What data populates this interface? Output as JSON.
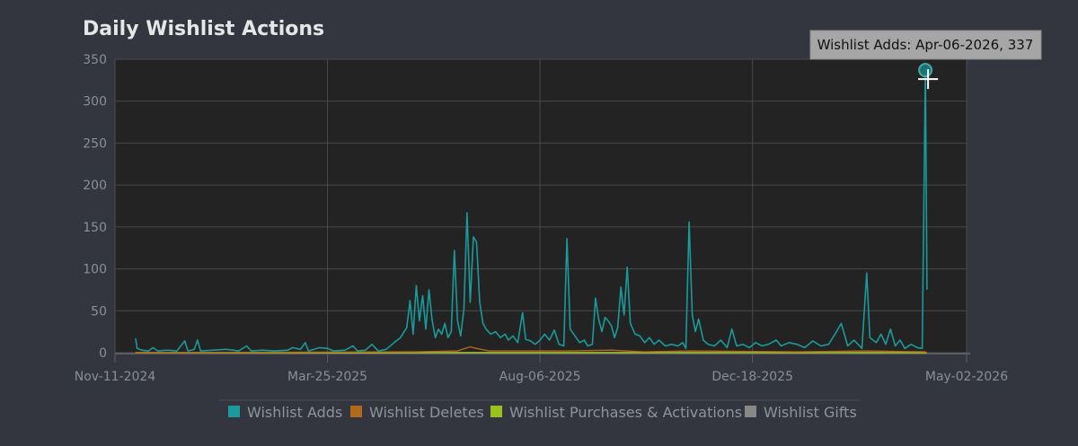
{
  "chart_data": {
    "type": "line",
    "title": "Daily Wishlist Actions",
    "xlabel": "",
    "ylabel": "",
    "ylim": [
      0,
      350
    ],
    "y_ticks": [
      0,
      50,
      100,
      150,
      200,
      250,
      300,
      350
    ],
    "xlim": [
      "2024-11-11",
      "2026-05-02"
    ],
    "x_tick_labels": [
      "Nov-11-2024",
      "Mar-25-2025",
      "Aug-06-2025",
      "Dec-18-2025",
      "May-02-2026"
    ],
    "x_tick_dates": [
      "2024-11-11",
      "2025-03-25",
      "2025-08-06",
      "2025-12-18",
      "2026-05-02"
    ],
    "grid": true,
    "legend_position": "bottom",
    "series": [
      {
        "name": "Wishlist Adds",
        "color": "#1a9a9a",
        "points": [
          [
            "2024-11-24",
            17
          ],
          [
            "2024-11-25",
            5
          ],
          [
            "2024-11-28",
            3
          ],
          [
            "2024-12-02",
            2
          ],
          [
            "2024-12-05",
            6
          ],
          [
            "2024-12-08",
            2
          ],
          [
            "2024-12-14",
            3
          ],
          [
            "2024-12-20",
            2
          ],
          [
            "2024-12-25",
            14
          ],
          [
            "2024-12-27",
            2
          ],
          [
            "2024-12-31",
            4
          ],
          [
            "2025-01-02",
            15
          ],
          [
            "2025-01-04",
            2
          ],
          [
            "2025-01-12",
            3
          ],
          [
            "2025-01-20",
            4
          ],
          [
            "2025-01-28",
            2
          ],
          [
            "2025-02-02",
            8
          ],
          [
            "2025-02-05",
            2
          ],
          [
            "2025-02-12",
            3
          ],
          [
            "2025-02-20",
            2
          ],
          [
            "2025-02-28",
            3
          ],
          [
            "2025-03-03",
            6
          ],
          [
            "2025-03-08",
            4
          ],
          [
            "2025-03-11",
            12
          ],
          [
            "2025-03-13",
            2
          ],
          [
            "2025-03-20",
            6
          ],
          [
            "2025-03-25",
            5
          ],
          [
            "2025-03-29",
            2
          ],
          [
            "2025-04-05",
            3
          ],
          [
            "2025-04-10",
            8
          ],
          [
            "2025-04-13",
            2
          ],
          [
            "2025-04-18",
            3
          ],
          [
            "2025-04-22",
            10
          ],
          [
            "2025-04-26",
            2
          ],
          [
            "2025-05-01",
            4
          ],
          [
            "2025-05-06",
            12
          ],
          [
            "2025-05-10",
            18
          ],
          [
            "2025-05-14",
            30
          ],
          [
            "2025-05-16",
            62
          ],
          [
            "2025-05-18",
            22
          ],
          [
            "2025-05-20",
            80
          ],
          [
            "2025-05-22",
            38
          ],
          [
            "2025-05-24",
            68
          ],
          [
            "2025-05-26",
            28
          ],
          [
            "2025-05-28",
            75
          ],
          [
            "2025-05-30",
            38
          ],
          [
            "2025-06-01",
            18
          ],
          [
            "2025-06-03",
            28
          ],
          [
            "2025-06-05",
            22
          ],
          [
            "2025-06-07",
            35
          ],
          [
            "2025-06-09",
            18
          ],
          [
            "2025-06-11",
            25
          ],
          [
            "2025-06-13",
            122
          ],
          [
            "2025-06-15",
            38
          ],
          [
            "2025-06-17",
            20
          ],
          [
            "2025-06-19",
            52
          ],
          [
            "2025-06-21",
            167
          ],
          [
            "2025-06-23",
            60
          ],
          [
            "2025-06-25",
            138
          ],
          [
            "2025-06-27",
            132
          ],
          [
            "2025-06-29",
            60
          ],
          [
            "2025-07-01",
            35
          ],
          [
            "2025-07-03",
            28
          ],
          [
            "2025-07-06",
            22
          ],
          [
            "2025-07-09",
            25
          ],
          [
            "2025-07-12",
            18
          ],
          [
            "2025-07-15",
            22
          ],
          [
            "2025-07-17",
            15
          ],
          [
            "2025-07-20",
            20
          ],
          [
            "2025-07-23",
            12
          ],
          [
            "2025-07-26",
            48
          ],
          [
            "2025-07-28",
            16
          ],
          [
            "2025-07-31",
            14
          ],
          [
            "2025-08-03",
            10
          ],
          [
            "2025-08-06",
            15
          ],
          [
            "2025-08-09",
            22
          ],
          [
            "2025-08-12",
            15
          ],
          [
            "2025-08-15",
            27
          ],
          [
            "2025-08-18",
            10
          ],
          [
            "2025-08-21",
            8
          ],
          [
            "2025-08-23",
            136
          ],
          [
            "2025-08-25",
            28
          ],
          [
            "2025-08-28",
            20
          ],
          [
            "2025-08-31",
            12
          ],
          [
            "2025-09-03",
            15
          ],
          [
            "2025-09-05",
            8
          ],
          [
            "2025-09-08",
            10
          ],
          [
            "2025-09-10",
            65
          ],
          [
            "2025-09-12",
            40
          ],
          [
            "2025-09-14",
            25
          ],
          [
            "2025-09-16",
            42
          ],
          [
            "2025-09-18",
            38
          ],
          [
            "2025-09-20",
            32
          ],
          [
            "2025-09-22",
            18
          ],
          [
            "2025-09-24",
            30
          ],
          [
            "2025-09-26",
            78
          ],
          [
            "2025-09-28",
            45
          ],
          [
            "2025-09-30",
            102
          ],
          [
            "2025-10-02",
            35
          ],
          [
            "2025-10-05",
            22
          ],
          [
            "2025-10-08",
            20
          ],
          [
            "2025-10-11",
            12
          ],
          [
            "2025-10-14",
            18
          ],
          [
            "2025-10-17",
            10
          ],
          [
            "2025-10-20",
            15
          ],
          [
            "2025-10-24",
            8
          ],
          [
            "2025-10-28",
            10
          ],
          [
            "2025-11-01",
            8
          ],
          [
            "2025-11-04",
            12
          ],
          [
            "2025-11-06",
            5
          ],
          [
            "2025-11-08",
            156
          ],
          [
            "2025-11-10",
            45
          ],
          [
            "2025-11-12",
            25
          ],
          [
            "2025-11-14",
            40
          ],
          [
            "2025-11-17",
            15
          ],
          [
            "2025-11-20",
            10
          ],
          [
            "2025-11-24",
            8
          ],
          [
            "2025-11-28",
            15
          ],
          [
            "2025-12-02",
            6
          ],
          [
            "2025-12-05",
            28
          ],
          [
            "2025-12-08",
            8
          ],
          [
            "2025-12-12",
            10
          ],
          [
            "2025-12-16",
            6
          ],
          [
            "2025-12-20",
            12
          ],
          [
            "2025-12-24",
            8
          ],
          [
            "2025-12-28",
            10
          ],
          [
            "2026-01-02",
            15
          ],
          [
            "2026-01-05",
            8
          ],
          [
            "2026-01-10",
            12
          ],
          [
            "2026-01-15",
            10
          ],
          [
            "2026-01-20",
            6
          ],
          [
            "2026-01-25",
            14
          ],
          [
            "2026-01-30",
            8
          ],
          [
            "2026-02-04",
            10
          ],
          [
            "2026-02-09",
            25
          ],
          [
            "2026-02-12",
            35
          ],
          [
            "2026-02-16",
            8
          ],
          [
            "2026-02-20",
            15
          ],
          [
            "2026-02-25",
            5
          ],
          [
            "2026-02-28",
            95
          ],
          [
            "2026-03-02",
            18
          ],
          [
            "2026-03-06",
            12
          ],
          [
            "2026-03-09",
            22
          ],
          [
            "2026-03-12",
            10
          ],
          [
            "2026-03-15",
            28
          ],
          [
            "2026-03-18",
            8
          ],
          [
            "2026-03-21",
            15
          ],
          [
            "2026-03-24",
            5
          ],
          [
            "2026-03-28",
            10
          ],
          [
            "2026-04-01",
            6
          ],
          [
            "2026-04-04",
            5
          ],
          [
            "2026-04-06",
            337
          ],
          [
            "2026-04-07",
            75
          ]
        ]
      },
      {
        "name": "Wishlist Deletes",
        "color": "#b06a1a",
        "points": [
          [
            "2024-11-24",
            0
          ],
          [
            "2025-05-20",
            1
          ],
          [
            "2025-06-15",
            2
          ],
          [
            "2025-06-23",
            7
          ],
          [
            "2025-06-27",
            5
          ],
          [
            "2025-07-05",
            2
          ],
          [
            "2025-08-23",
            2
          ],
          [
            "2025-09-20",
            3
          ],
          [
            "2025-10-10",
            1
          ],
          [
            "2025-11-08",
            2
          ],
          [
            "2026-01-15",
            1
          ],
          [
            "2026-02-28",
            2
          ],
          [
            "2026-04-06",
            1
          ],
          [
            "2026-04-07",
            0
          ]
        ]
      },
      {
        "name": "Wishlist Purchases & Activations",
        "color": "#9ac21a",
        "points": [
          [
            "2024-11-24",
            0
          ],
          [
            "2026-04-07",
            0
          ]
        ]
      },
      {
        "name": "Wishlist Gifts",
        "color": "#888888",
        "points": [
          [
            "2024-11-24",
            0
          ],
          [
            "2026-04-07",
            0
          ]
        ]
      }
    ],
    "tooltip": {
      "text": "Wishlist Adds: Apr-06-2026, 337",
      "date": "2026-04-06",
      "value": 337
    }
  }
}
